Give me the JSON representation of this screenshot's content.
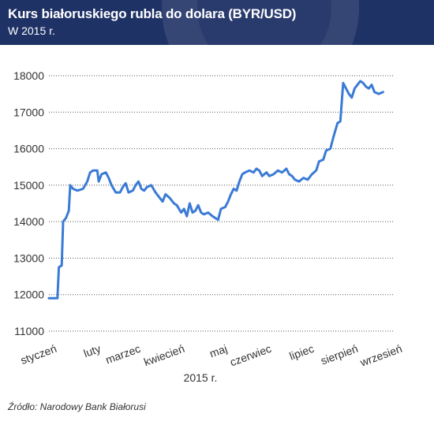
{
  "header": {
    "title": "Kurs białoruskiego rubla do dolara (BYR/USD)",
    "subtitle": "W 2015 r."
  },
  "source": "Źródło: Narodowy Bank Białorusi",
  "colors": {
    "header_bg": "#1f3266",
    "line": "#3a7bd5",
    "grid": "#555555",
    "text": "#333333"
  },
  "chart_data": {
    "type": "line",
    "title": "Kurs białoruskiego rubla do dolara (BYR/USD)",
    "subtitle": "W 2015 r.",
    "xlabel": "2015 r.",
    "ylabel": "",
    "ylim": [
      11000,
      18000
    ],
    "yticks": [
      11000,
      12000,
      13000,
      14000,
      15000,
      16000,
      17000,
      18000
    ],
    "xlim": [
      0,
      242
    ],
    "months": [
      "styczeń",
      "luty",
      "marzec",
      "kwiecień",
      "maj",
      "czerwiec",
      "lipiec",
      "sierpień",
      "wrzesień"
    ],
    "month_positions": [
      0,
      31,
      59,
      90,
      120,
      151,
      181,
      212,
      243
    ],
    "grid": "horizontal-dotted",
    "legend": "none",
    "series": [
      {
        "values": [
          [
            0,
            11900
          ],
          [
            6,
            11900
          ],
          [
            7,
            12750
          ],
          [
            9,
            12800
          ],
          [
            10,
            14000
          ],
          [
            12,
            14100
          ],
          [
            14,
            14300
          ],
          [
            15,
            15000
          ],
          [
            17,
            14900
          ],
          [
            20,
            14850
          ],
          [
            24,
            14900
          ],
          [
            27,
            15100
          ],
          [
            29,
            15350
          ],
          [
            31,
            15400
          ],
          [
            34,
            15400
          ],
          [
            35,
            15100
          ],
          [
            37,
            15300
          ],
          [
            40,
            15350
          ],
          [
            42,
            15200
          ],
          [
            44,
            15000
          ],
          [
            47,
            14800
          ],
          [
            50,
            14800
          ],
          [
            52,
            14950
          ],
          [
            54,
            15050
          ],
          [
            56,
            14800
          ],
          [
            59,
            14850
          ],
          [
            61,
            15000
          ],
          [
            63,
            15100
          ],
          [
            65,
            14900
          ],
          [
            67,
            14850
          ],
          [
            69,
            14950
          ],
          [
            72,
            15000
          ],
          [
            75,
            14800
          ],
          [
            78,
            14650
          ],
          [
            80,
            14550
          ],
          [
            82,
            14750
          ],
          [
            85,
            14650
          ],
          [
            88,
            14500
          ],
          [
            90,
            14450
          ],
          [
            93,
            14250
          ],
          [
            95,
            14350
          ],
          [
            97,
            14150
          ],
          [
            99,
            14500
          ],
          [
            101,
            14250
          ],
          [
            103,
            14300
          ],
          [
            105,
            14450
          ],
          [
            107,
            14250
          ],
          [
            109,
            14200
          ],
          [
            112,
            14250
          ],
          [
            115,
            14150
          ],
          [
            117,
            14100
          ],
          [
            119,
            14050
          ],
          [
            121,
            14350
          ],
          [
            124,
            14400
          ],
          [
            126,
            14550
          ],
          [
            128,
            14750
          ],
          [
            130,
            14900
          ],
          [
            132,
            14850
          ],
          [
            134,
            15100
          ],
          [
            136,
            15300
          ],
          [
            138,
            15350
          ],
          [
            141,
            15400
          ],
          [
            144,
            15350
          ],
          [
            146,
            15450
          ],
          [
            148,
            15400
          ],
          [
            150,
            15250
          ],
          [
            153,
            15350
          ],
          [
            155,
            15250
          ],
          [
            158,
            15300
          ],
          [
            161,
            15400
          ],
          [
            164,
            15350
          ],
          [
            167,
            15450
          ],
          [
            169,
            15300
          ],
          [
            171,
            15250
          ],
          [
            173,
            15150
          ],
          [
            176,
            15100
          ],
          [
            179,
            15200
          ],
          [
            182,
            15150
          ],
          [
            185,
            15300
          ],
          [
            188,
            15400
          ],
          [
            190,
            15650
          ],
          [
            193,
            15700
          ],
          [
            195,
            15950
          ],
          [
            198,
            16000
          ],
          [
            200,
            16300
          ],
          [
            203,
            16700
          ],
          [
            205,
            16750
          ],
          [
            207,
            17800
          ],
          [
            209,
            17650
          ],
          [
            211,
            17500
          ],
          [
            213,
            17400
          ],
          [
            215,
            17650
          ],
          [
            217,
            17750
          ],
          [
            219,
            17850
          ],
          [
            221,
            17800
          ],
          [
            223,
            17700
          ],
          [
            225,
            17650
          ],
          [
            227,
            17750
          ],
          [
            229,
            17550
          ],
          [
            232,
            17500
          ],
          [
            235,
            17550
          ]
        ]
      }
    ]
  }
}
